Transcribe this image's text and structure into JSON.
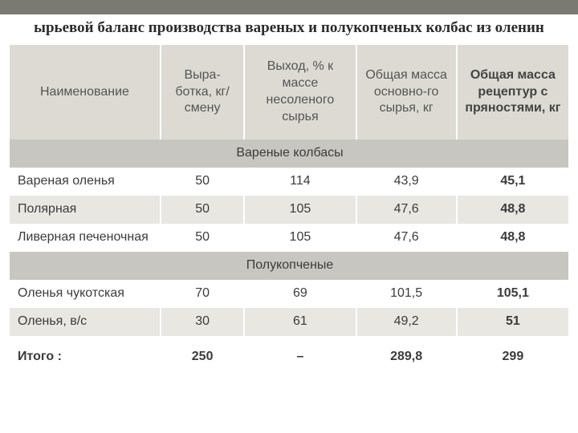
{
  "title": "ырьевой баланс производства вареных и полукопченых колбас из оленин",
  "colors": {
    "topbar": "#7a7a72",
    "header_bg": "#dcdad3",
    "section_bg": "#c7c6c0",
    "row_alt_bg": "#e8e7e2",
    "row_plain_bg": "#ffffff",
    "text": "#3b3b3b"
  },
  "typography": {
    "title_font": "Times New Roman",
    "title_size_pt": 15,
    "title_weight": "bold",
    "body_font": "Arial",
    "body_size_pt": 12
  },
  "table": {
    "type": "table",
    "column_widths_pct": [
      27,
      15,
      20,
      18,
      20
    ],
    "columns": [
      "Наименование",
      "Выра-ботка, кг/смену",
      "Выход, % к массе несоленого сырья",
      "Общая масса основно-го сырья, кг",
      "Общая масса рецептур с пряностями, кг"
    ],
    "sections": [
      {
        "label": "Вареные колбасы",
        "rows": [
          {
            "name": "Вареная оленья",
            "output": "50",
            "yield": "114",
            "mass_main": "43,9",
            "mass_recipe": "45,1",
            "alt": false
          },
          {
            "name": "Полярная",
            "output": "50",
            "yield": "105",
            "mass_main": "47,6",
            "mass_recipe": "48,8",
            "alt": true
          },
          {
            "name": "Ливерная печеночная",
            "output": "50",
            "yield": "105",
            "mass_main": "47,6",
            "mass_recipe": "48,8",
            "alt": false
          }
        ]
      },
      {
        "label": "Полукопченые",
        "rows": [
          {
            "name": "Оленья чукотская",
            "output": "70",
            "yield": "69",
            "mass_main": "101,5",
            "mass_recipe": "105,1",
            "alt": false
          },
          {
            "name": "Оленья, в/с",
            "output": "30",
            "yield": "61",
            "mass_main": "49,2",
            "mass_recipe": "51",
            "alt": true
          }
        ]
      }
    ],
    "total": {
      "name": "Итого :",
      "output": "250",
      "yield": "–",
      "mass_main": "289,8",
      "mass_recipe": "299"
    }
  }
}
